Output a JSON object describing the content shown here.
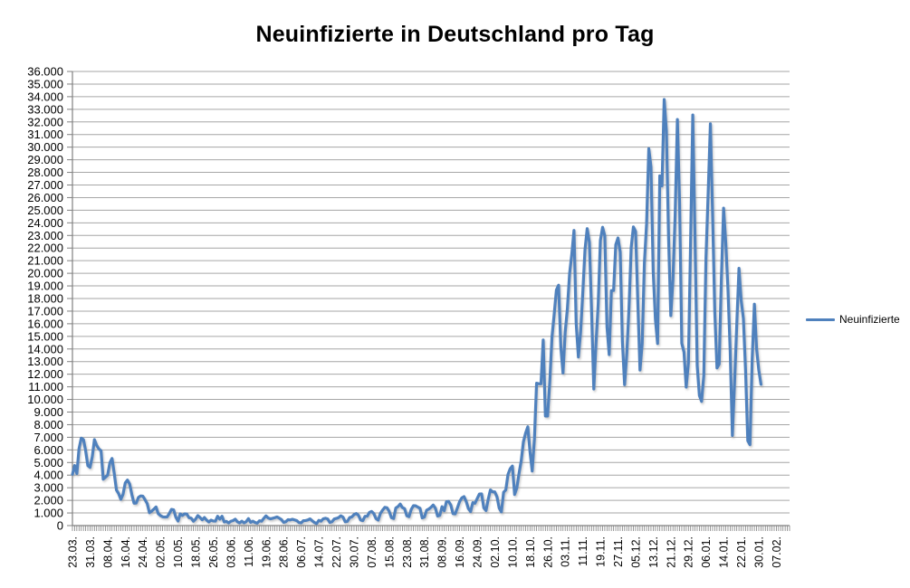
{
  "chart_title": "Neuinfizierte in Deutschland pro Tag",
  "legend": {
    "series_label": "Neuinfizierte",
    "position": "right"
  },
  "colors": {
    "series_line": "#4F81BD",
    "gridline": "#A6A6A6",
    "axis": "#808080",
    "text": "#000000",
    "background": "#FFFFFF"
  },
  "chart_data": {
    "type": "line",
    "title": "Neuinfizierte in Deutschland pro Tag",
    "xlabel": "",
    "ylabel": "",
    "grid": "horizontal",
    "legend_position": "right",
    "y_axis": {
      "min": 0,
      "max": 36000,
      "step": 1000
    },
    "y_tick_labels": [
      "0",
      "1.000",
      "2.000",
      "3.000",
      "4.000",
      "5.000",
      "6.000",
      "7.000",
      "8.000",
      "9.000",
      "10.000",
      "11.000",
      "12.000",
      "13.000",
      "14.000",
      "15.000",
      "16.000",
      "17.000",
      "18.000",
      "19.000",
      "20.000",
      "21.000",
      "22.000",
      "23.000",
      "24.000",
      "25.000",
      "26.000",
      "27.000",
      "28.000",
      "29.000",
      "30.000",
      "31.000",
      "32.000",
      "33.000",
      "34.000",
      "35.000",
      "36.000"
    ],
    "x_tick_labels": [
      "23.03.",
      "31.03.",
      "08.04.",
      "16.04.",
      "24.04.",
      "02.05.",
      "10.05.",
      "18.05.",
      "26.05.",
      "03.06.",
      "11.06.",
      "19.06.",
      "28.06.",
      "06.07.",
      "14.07.",
      "22.07.",
      "30.07.",
      "07.08.",
      "15.08.",
      "23.08.",
      "31.08.",
      "08.09.",
      "16.09.",
      "24.09.",
      "02.10.",
      "10.10.",
      "18.10.",
      "26.10.",
      "03.11.",
      "11.11.",
      "19.11.",
      "27.11.",
      "05.12.",
      "13.12.",
      "21.12.",
      "29.12.",
      "06.01.",
      "14.01.",
      "22.01.",
      "30.01.",
      "07.02."
    ],
    "x_tick_every_n_categories": 8,
    "total_categories": 327,
    "series": [
      {
        "name": "Neuinfizierte",
        "color": "#4F81BD",
        "start_category_label": "23.03.",
        "frequency": "daily",
        "values": [
          4062,
          4764,
          4118,
          6100,
          6933,
          6824,
          5936,
          4751,
          4615,
          5453,
          6813,
          6365,
          6082,
          5936,
          3677,
          3834,
          4003,
          4974,
          5323,
          4133,
          2821,
          2537,
          2082,
          2486,
          3380,
          3609,
          3301,
          2458,
          1775,
          1785,
          2237,
          2352,
          2337,
          2055,
          1737,
          1018,
          1144,
          1304,
          1478,
          945,
          793,
          697,
          679,
          685,
          947,
          1284,
          1251,
          667,
          357,
          933,
          798,
          933,
          913,
          620,
          583,
          342,
          513,
          797,
          639,
          460,
          638,
          431,
          289,
          432,
          362,
          353,
          741,
          507,
          738,
          286,
          333,
          213,
          342,
          394,
          507,
          301,
          214,
          350,
          214,
          318,
          555,
          258,
          348,
          247,
          192,
          378,
          345,
          580,
          770,
          601,
          537,
          577,
          630,
          687,
          589,
          477,
          256,
          310,
          466,
          445,
          503,
          446,
          391,
          239,
          219,
          390,
          397,
          442,
          532,
          378,
          248,
          159,
          412,
          351,
          534,
          583,
          529,
          249,
          305,
          521,
          569,
          632,
          781,
          667,
          305,
          340,
          633,
          684,
          870,
          955,
          824,
          442,
          391,
          741,
          741,
          1045,
          1122,
          955,
          555,
          436,
          966,
          1226,
          1445,
          1415,
          1122,
          625,
          561,
          1390,
          1510,
          1707,
          1427,
          1342,
          782,
          711,
          1278,
          1576,
          1571,
          1466,
          1368,
          611,
          683,
          1218,
          1311,
          1453,
          1630,
          1378,
          754,
          814,
          1499,
          1176,
          1892,
          1916,
          1630,
          948,
          927,
          1407,
          1901,
          2194,
          2297,
          1916,
          1345,
          1108,
          1821,
          1769,
          2143,
          2507,
          2514,
          1411,
          1192,
          2089,
          2828,
          2673,
          2673,
          2279,
          1382,
          1084,
          2639,
          2828,
          4058,
          4516,
          4721,
          2467,
          2976,
          4122,
          5132,
          6638,
          7334,
          7830,
          5862,
          4325,
          6868,
          11287,
          11242,
          11242,
          14714,
          8685,
          8685,
          11409,
          14964,
          16774,
          18681,
          19059,
          14177,
          12097,
          15352,
          17214,
          19990,
          21506,
          23399,
          16017,
          13363,
          15332,
          18487,
          21866,
          23542,
          22461,
          16947,
          10824,
          14419,
          17561,
          22609,
          23648,
          22964,
          15741,
          13554,
          18633,
          18633,
          22268,
          22806,
          21695,
          14611,
          11169,
          13604,
          17270,
          22046,
          23679,
          23318,
          17767,
          12332,
          14432,
          20815,
          23928,
          29875,
          28438,
          20200,
          16362,
          14432,
          27728,
          26923,
          33777,
          31300,
          22771,
          16643,
          19528,
          24740,
          32195,
          25533,
          14455,
          13755,
          10976,
          12892,
          22459,
          32552,
          22924,
          12690,
          10315,
          9847,
          11897,
          21237,
          26391,
          31849,
          24694,
          16946,
          12497,
          12802,
          19600,
          25164,
          22368,
          18678,
          13882,
          7141,
          11369,
          15974,
          20398,
          17862,
          16417,
          12257,
          6729,
          6412,
          13202,
          17553,
          14022,
          12321,
          11192
        ]
      }
    ]
  }
}
